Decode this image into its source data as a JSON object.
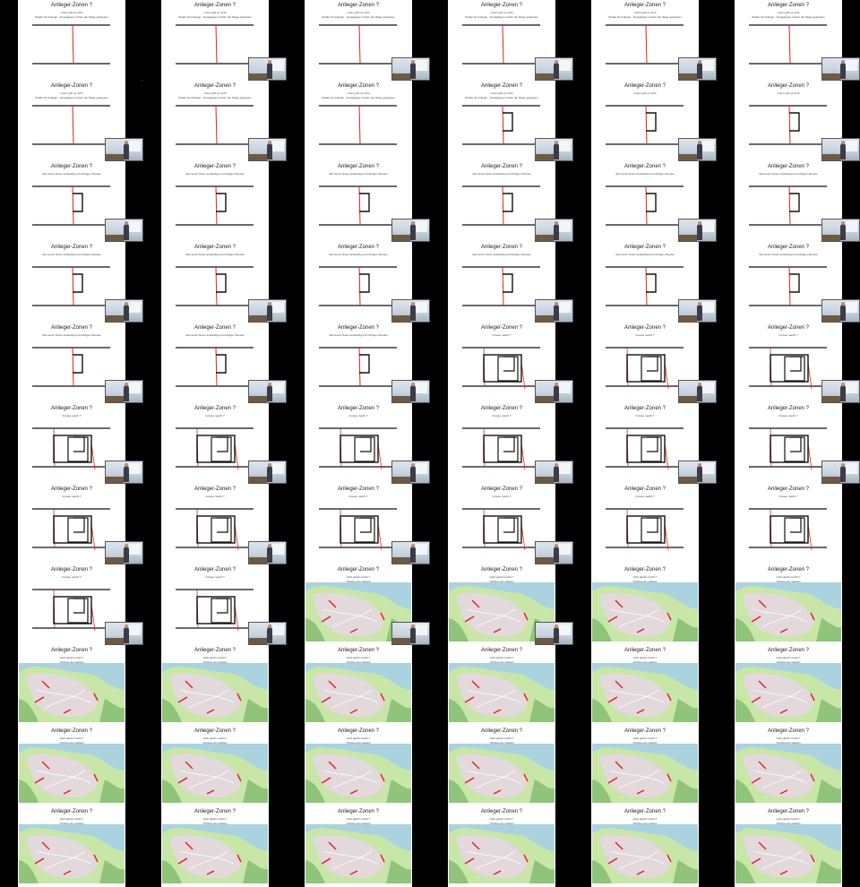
{
  "sheet": {
    "columns": 6,
    "rows": 11,
    "slides": [
      {
        "kind": "empty",
        "title": "Anlieger-Zonen ?",
        "sub1": "Linien gibt es nicht",
        "sub2": "Straße für Anlieger - Fussgänger einzeln der Wege gekoppen",
        "cam": false
      },
      {
        "kind": "empty",
        "title": "Anlieger-Zonen ?",
        "sub1": "Linien gibt es nicht",
        "sub2": "Straße für Anlieger - Fussgänger einzeln der Wege gekoppen",
        "cam": true
      },
      {
        "kind": "empty",
        "title": "Anlieger-Zonen ?",
        "sub1": "Linien gibt es nicht",
        "sub2": "Straße für Anlieger - Fussgänger einzeln der Wege gekoppen",
        "cam": true
      },
      {
        "kind": "empty",
        "title": "Anlieger-Zonen ?",
        "sub1": "Linien gibt es nicht",
        "sub2": "Straße für Anlieger - Fussgänger einzeln der Wege gekoppen",
        "cam": true
      },
      {
        "kind": "empty",
        "title": "Anlieger-Zonen ?",
        "sub1": "Linien gibt es nicht",
        "sub2": "Straße für Anlieger - Fussgänger einzeln der Wege gekoppen",
        "cam": true
      },
      {
        "kind": "empty",
        "title": "Anlieger-Zonen ?",
        "sub1": "Linien gibt es nicht",
        "sub2": "Straße für Anlieger - Fussgänger einzeln der Wege gekoppen",
        "cam": true
      },
      {
        "kind": "empty",
        "title": "Anlieger-Zonen ?",
        "sub1": "Linien gibt es nicht",
        "sub2": "Straße für Anlieger - Fussgänger einzeln der Wege gekoppen",
        "cam": true
      },
      {
        "kind": "empty",
        "title": "Anlieger-Zonen ?",
        "sub1": "Linien gibt es nicht",
        "sub2": "Straße für Anlieger - Fussgänger einzeln der Wege gekoppen",
        "cam": true
      },
      {
        "kind": "empty",
        "title": "Anlieger-Zonen ?",
        "sub1": "Linien gibt es nicht",
        "sub2": "Straße für Anlieger - Fussgänger einzeln der Wege gekoppen",
        "cam": false
      },
      {
        "kind": "loop",
        "title": "Anlieger-Zonen ?",
        "sub1": "Linien gibt es nicht",
        "sub2": "Straße für Anlieger - Fussgänger einzeln der Wege gekoppen",
        "cam": true
      },
      {
        "kind": "loop",
        "title": "Anlieger-Zonen ?",
        "sub1": "Linien gibt es nicht",
        "sub2": "",
        "cam": true
      },
      {
        "kind": "loop",
        "title": "Anlieger-Zonen ?",
        "sub1": "Linien gibt es nicht",
        "sub2": "",
        "cam": true
      },
      {
        "kind": "loop",
        "title": "Anlieger-Zonen ?",
        "sub1": "Wer kennt hinein anständig und richtigen Strecke",
        "sub2": "",
        "cam": true
      },
      {
        "kind": "loop",
        "title": "Anlieger-Zonen ?",
        "sub1": "Wer kennt hinein anständig und richtigen Strecke",
        "sub2": "",
        "cam": false
      },
      {
        "kind": "loop",
        "title": "Anlieger-Zonen ?",
        "sub1": "Wer kennt hinein anständig und richtigen Strecke",
        "sub2": "",
        "cam": true
      },
      {
        "kind": "loop",
        "title": "Anlieger-Zonen ?",
        "sub1": "Wer kennt hinein anständig und richtigen Strecke",
        "sub2": "",
        "cam": true
      },
      {
        "kind": "loop",
        "title": "Anlieger-Zonen ?",
        "sub1": "Wer kennt hinein anständig und richtigen Strecke",
        "sub2": "",
        "cam": true
      },
      {
        "kind": "loop",
        "title": "Anlieger-Zonen ?",
        "sub1": "Wer kennt hinein anständig und richtigen Strecke",
        "sub2": "",
        "cam": true
      },
      {
        "kind": "loop",
        "title": "Anlieger-Zonen ?",
        "sub1": "Wer kennt hinein anständig und richtigen Strecke",
        "sub2": "",
        "cam": true
      },
      {
        "kind": "loop",
        "title": "Anlieger-Zonen ?",
        "sub1": "Wer kennt hinein anständig und richtigen Strecke",
        "sub2": "",
        "cam": true
      },
      {
        "kind": "loop",
        "title": "Anlieger-Zonen ?",
        "sub1": "Wer kennt hinein anständig und richtigen Strecke",
        "sub2": "",
        "cam": true
      },
      {
        "kind": "loop",
        "title": "Anlieger-Zonen ?",
        "sub1": "Wer kennt hinein anständig und richtigen Strecke",
        "sub2": "",
        "cam": true
      },
      {
        "kind": "loop",
        "title": "Anlieger-Zonen ?",
        "sub1": "Wer kennt hinein anständig und richtigen Strecke",
        "sub2": "",
        "cam": true
      },
      {
        "kind": "loop",
        "title": "Anlieger-Zonen ?",
        "sub1": "Wer kennt hinein anständig und richtigen Strecke",
        "sub2": "",
        "cam": true
      },
      {
        "kind": "loop",
        "title": "Anlieger-Zonen ?",
        "sub1": "Wer kennt hinein anständig und richtigen Strecke",
        "sub2": "",
        "cam": true
      },
      {
        "kind": "loop",
        "title": "Anlieger-Zonen ?",
        "sub1": "Wer kennt hinein anständig und richtigen Strecke",
        "sub2": "",
        "cam": true
      },
      {
        "kind": "loop",
        "title": "Anlieger-Zonen ?",
        "sub1": "Wer kennt hinein anständig und richtigen Strecke",
        "sub2": "",
        "cam": true
      },
      {
        "kind": "boxes",
        "title": "Anlieger-Zonen ?",
        "sub1": "Grosse macht ?",
        "sub2": "",
        "cam": true
      },
      {
        "kind": "boxes",
        "title": "Anlieger-Zonen ?",
        "sub1": "Grosse macht ?",
        "sub2": "",
        "cam": true
      },
      {
        "kind": "boxes",
        "title": "Anlieger-Zonen ?",
        "sub1": "Grosse macht ?",
        "sub2": "",
        "cam": true
      },
      {
        "kind": "boxes",
        "title": "Anlieger-Zonen ?",
        "sub1": "Grosse macht ?",
        "sub2": "",
        "cam": true
      },
      {
        "kind": "boxes",
        "title": "Anlieger-Zonen ?",
        "sub1": "Grosse macht ?",
        "sub2": "",
        "cam": true
      },
      {
        "kind": "boxes",
        "title": "Anlieger-Zonen ?",
        "sub1": "Grosse macht ?",
        "sub2": "",
        "cam": true
      },
      {
        "kind": "boxes",
        "title": "Anlieger-Zonen ?",
        "sub1": "Grosse macht ?",
        "sub2": "",
        "cam": true
      },
      {
        "kind": "boxes",
        "title": "Anlieger-Zonen ?",
        "sub1": "Grosse macht ?",
        "sub2": "",
        "cam": true
      },
      {
        "kind": "boxes",
        "title": "Anlieger-Zonen ?",
        "sub1": "Grosse macht ?",
        "sub2": "",
        "cam": true
      },
      {
        "kind": "boxes",
        "title": "Anlieger-Zonen ?",
        "sub1": "Grosse macht ?",
        "sub2": "",
        "cam": true
      },
      {
        "kind": "boxes",
        "title": "Anlieger-Zonen ?",
        "sub1": "Grosse macht ?",
        "sub2": "",
        "cam": true
      },
      {
        "kind": "boxes",
        "title": "Anlieger-Zonen ?",
        "sub1": "Grosse macht ?",
        "sub2": "",
        "cam": true
      },
      {
        "kind": "boxes",
        "title": "Anlieger-Zonen ?",
        "sub1": "Grosse macht ?",
        "sub2": "",
        "cam": true
      },
      {
        "kind": "boxes",
        "title": "Anlieger-Zonen ?",
        "sub1": "Grosse macht ?",
        "sub2": "",
        "cam": false
      },
      {
        "kind": "boxes",
        "title": "Anlieger-Zonen ?",
        "sub1": "Grosse macht ?",
        "sub2": "",
        "cam": false
      },
      {
        "kind": "boxes",
        "title": "Anlieger-Zonen ?",
        "sub1": "Grosse macht ?",
        "sub2": "",
        "cam": true
      },
      {
        "kind": "boxes",
        "title": "Anlieger-Zonen ?",
        "sub1": "Grosse macht ?",
        "sub2": "",
        "cam": true
      },
      {
        "kind": "map",
        "title": "Anlieger-Zonen ?",
        "sub1": "Geht gleich macht ?",
        "sub2": "(Schöne der Gebiet)",
        "cam": true
      },
      {
        "kind": "map",
        "title": "Anlieger-Zonen ?",
        "sub1": "Geht gleich macht ?",
        "sub2": "(Schöne der Gebiet)",
        "cam": true
      },
      {
        "kind": "map",
        "title": "Anlieger-Zonen ?",
        "sub1": "Geht gleich macht ?",
        "sub2": "(Schöne der Gebiet)",
        "cam": false
      },
      {
        "kind": "map",
        "title": "Anlieger-Zonen ?",
        "sub1": "Geht gleich macht ?",
        "sub2": "(Schöne der Gebiet)",
        "cam": false
      },
      {
        "kind": "map",
        "title": "Anlieger-Zonen ?",
        "sub1": "Geht gleich macht ?",
        "sub2": "(Schöne der Gebiet)",
        "cam": false
      },
      {
        "kind": "map",
        "title": "Anlieger-Zonen ?",
        "sub1": "Geht gleich macht ?",
        "sub2": "(Schöne der Gebiet)",
        "cam": false
      },
      {
        "kind": "map",
        "title": "Anlieger-Zonen ?",
        "sub1": "Geht gleich macht ?",
        "sub2": "(Schöne der Gebiet)",
        "cam": false
      },
      {
        "kind": "map",
        "title": "Anlieger-Zonen ?",
        "sub1": "Geht gleich macht ?",
        "sub2": "(Schöne der Gebiet)",
        "cam": false
      },
      {
        "kind": "map",
        "title": "Anlieger-Zonen ?",
        "sub1": "Geht gleich macht ?",
        "sub2": "(Schöne der Gebiet)",
        "cam": false
      },
      {
        "kind": "map",
        "title": "Anlieger-Zonen ?",
        "sub1": "Geht gleich macht ?",
        "sub2": "(Schöne der Gebiet)",
        "cam": false
      },
      {
        "kind": "map",
        "title": "Anlieger-Zonen ?",
        "sub1": "Geht gleich macht ?",
        "sub2": "(Schöne der Gebiet)",
        "cam": false
      },
      {
        "kind": "map",
        "title": "Anlieger-Zonen ?",
        "sub1": "Geht gleich macht ?",
        "sub2": "(Schöne der Gebiet)",
        "cam": false
      },
      {
        "kind": "map",
        "title": "Anlieger-Zonen ?",
        "sub1": "Geht gleich macht ?",
        "sub2": "(Schöne der Gebiet)",
        "cam": false
      },
      {
        "kind": "map",
        "title": "Anlieger-Zonen ?",
        "sub1": "Geht gleich macht ?",
        "sub2": "(Schöne der Gebiet)",
        "cam": false
      },
      {
        "kind": "map",
        "title": "Anlieger-Zonen ?",
        "sub1": "Geht gleich macht ?",
        "sub2": "(Schöne der Gebiet)",
        "cam": false
      },
      {
        "kind": "map",
        "title": "Anlieger-Zonen ?",
        "sub1": "Geht gleich macht ?",
        "sub2": "(Schöne der Gebiet)",
        "cam": false
      },
      {
        "kind": "map",
        "title": "Anlieger-Zonen ?",
        "sub1": "Geht gleich macht ?",
        "sub2": "(Schöne der Gebiet)",
        "cam": false
      },
      {
        "kind": "map",
        "title": "Anlieger-Zonen ?",
        "sub1": "Geht gleich macht ?",
        "sub2": "(Schöne der Gebiet)",
        "cam": false
      },
      {
        "kind": "map",
        "title": "Anlieger-Zonen ?",
        "sub1": "Geht gleich macht ?",
        "sub2": "(Schöne der Gebiet)",
        "cam": false
      },
      {
        "kind": "map",
        "title": "Anlieger-Zonen ?",
        "sub1": "Geht gleich macht ?",
        "sub2": "(Schöne der Gebiet)",
        "cam": false
      },
      {
        "kind": "map",
        "title": "Anlieger-Zonen ?",
        "sub1": "Geht gleich macht ?",
        "sub2": "(Schöne der Gebiet)",
        "cam": false
      },
      {
        "kind": "map",
        "title": "Anlieger-Zonen ?",
        "sub1": "Geht gleich macht ?",
        "sub2": "(Schöne der Gebiet)",
        "cam": false
      }
    ]
  },
  "colors": {
    "background": "#000000",
    "slide": "#ffffff",
    "road": "#111111",
    "boundary": "#e02020",
    "water": "#aad3df",
    "park": "#c8e6a8",
    "urban": "#e3d9dc",
    "forest": "#8fc47a"
  }
}
